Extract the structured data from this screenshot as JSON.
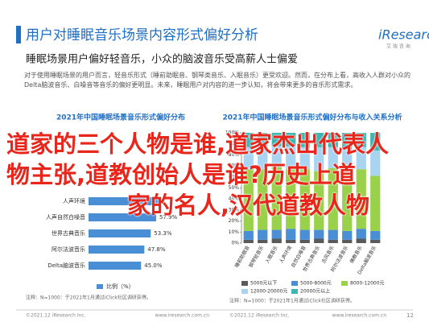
{
  "header": {
    "title": "用户对睡眠音乐场景内容形式偏好分析",
    "logo": "iResearch",
    "logo_sub": "艾 瑞 咨 询",
    "subtitle": "睡眠场景用户偏好轻音乐，小众的脑波音乐受高薪人士偏爱",
    "body": "对于使用睡眠场景的用户而言，轻音乐形式（睡前助眠音、钢琴类音乐、入眠音乐）更受欢迎。然而，在分布上看，高收入人群对小众的Delta脑波音乐、白噪音等音乐的偏好更明显。未来，睡眠用户对内容的进一步认知，将会带来更多的音乐形式需求。"
  },
  "overlay": {
    "lines": [
      "道家的三个人物是谁,道家杰出代表人",
      "物主张,道教创始人是谁?历史上道",
      "家的名人,汉代道教人物"
    ]
  },
  "chart_data": [
    {
      "type": "hbar",
      "title": "2021年中国睡眠场景音乐形式偏好分布",
      "categories": [
        "人声环境",
        "人声自然白噪音",
        "世界古典音乐",
        "阿尔法波音乐",
        "Delta脑波音乐"
      ],
      "values": [
        62,
        57.9,
        53.3,
        47.8,
        45.0
      ],
      "value_labels": [
        null,
        "57.9%",
        "53.3%",
        "47.8%",
        "45.0%"
      ],
      "xlim": [
        0,
        100
      ],
      "color": "#4a8fd6",
      "legend": "比例（%）",
      "note": "注释：N=1000：于2021年1月通过iClick社区调研获得。",
      "footer": "©2021.12 iResearch Inc.",
      "site": "www.iresearch.com.cn"
    },
    {
      "type": "stacked_bar",
      "title": "2021年中国睡眠场景音乐形式偏好分布与收入关系分析",
      "categories": [
        "睡前助眠音",
        "钢琴轻音乐",
        "入眠音乐",
        "人声环境",
        "自然白噪音",
        "世界古典音乐",
        "古风音乐",
        "阿尔法波音乐",
        "佛教音乐",
        "Delta脑波音乐"
      ],
      "series": [
        {
          "name": "5000元以下",
          "color": "#5a5a5a",
          "values": [
            3,
            3,
            4,
            3,
            3,
            4,
            3,
            3,
            4,
            3
          ]
        },
        {
          "name": "5000-8000元",
          "color": "#4a8fd6",
          "values": [
            8,
            9,
            8,
            10,
            9,
            8,
            9,
            8,
            9,
            8
          ]
        },
        {
          "name": "8000-12000元",
          "color": "#9ad14b",
          "values": [
            56,
            55,
            57,
            54,
            55,
            53,
            56,
            52,
            54,
            50
          ]
        },
        {
          "name": "12000-20000元",
          "color": "#a8d4f2",
          "values": [
            20,
            21,
            19,
            21,
            20,
            22,
            19,
            22,
            20,
            23
          ]
        },
        {
          "name": "20000元以上",
          "color": "#3cb6b0",
          "values": [
            13,
            12,
            12,
            12,
            13,
            13,
            13,
            15,
            13,
            16
          ]
        }
      ],
      "ylim": [
        0,
        100
      ],
      "yticks": [
        {
          "value": 0,
          "label": "0%"
        },
        {
          "value": 10,
          "label": "10%"
        },
        {
          "value": 20,
          "label": "20%"
        },
        {
          "value": 30,
          "label": "30%"
        },
        {
          "value": 40,
          "label": "40%"
        },
        {
          "value": 50,
          "label": "50%"
        },
        {
          "value": 60,
          "label": "60%"
        },
        {
          "value": 70,
          "label": "70%"
        },
        {
          "value": 80,
          "label": "80%"
        },
        {
          "value": 90,
          "label": "90%"
        },
        {
          "value": 100,
          "label": "100%"
        }
      ],
      "note": "注释：N=1000：于2021年1月通过iClick社区调研获得。",
      "footer": "©2021.12 iResearch Inc.",
      "site": "www.iresearch.com.cn",
      "page": "12"
    }
  ]
}
